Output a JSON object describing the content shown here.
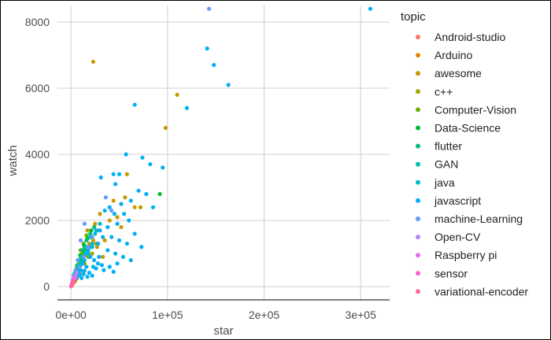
{
  "chart_data": {
    "type": "scatter",
    "xlabel": "star",
    "ylabel": "watch",
    "xlim": [
      -14000,
      330000
    ],
    "ylim": [
      -400,
      8500
    ],
    "x_ticks": [
      {
        "value": 0,
        "label": "0e+00"
      },
      {
        "value": 100000,
        "label": "1e+05"
      },
      {
        "value": 200000,
        "label": "2e+05"
      },
      {
        "value": 300000,
        "label": "3e+05"
      }
    ],
    "y_ticks": [
      {
        "value": 0,
        "label": "0"
      },
      {
        "value": 2000,
        "label": "2000"
      },
      {
        "value": 4000,
        "label": "4000"
      },
      {
        "value": 6000,
        "label": "6000"
      },
      {
        "value": 8000,
        "label": "8000"
      }
    ],
    "grid": true,
    "legend": {
      "title": "topic",
      "position": "right"
    },
    "series": [
      {
        "name": "Android-studio",
        "color": "#F8766D",
        "points": [
          [
            1200,
            60
          ],
          [
            2500,
            120
          ],
          [
            900,
            40
          ],
          [
            3500,
            150
          ],
          [
            1800,
            90
          ],
          [
            4200,
            200
          ],
          [
            600,
            30
          ],
          [
            5200,
            260
          ]
        ]
      },
      {
        "name": "Arduino",
        "color": "#E58700",
        "points": [
          [
            2000,
            100
          ],
          [
            4500,
            180
          ],
          [
            7000,
            320
          ],
          [
            10500,
            480
          ],
          [
            3200,
            140
          ],
          [
            1500,
            70
          ],
          [
            8500,
            390
          ],
          [
            6000,
            250
          ]
        ]
      },
      {
        "name": "awesome",
        "color": "#C99800",
        "points": [
          [
            23000,
            6800
          ],
          [
            110000,
            5800
          ],
          [
            98000,
            4800
          ],
          [
            58000,
            3400
          ],
          [
            72000,
            2400
          ],
          [
            66000,
            2400
          ],
          [
            56000,
            2700
          ],
          [
            48000,
            2100
          ],
          [
            40000,
            2000
          ],
          [
            30000,
            2200
          ],
          [
            28000,
            1700
          ],
          [
            25000,
            1900
          ],
          [
            35000,
            1400
          ],
          [
            20000,
            1500
          ],
          [
            15000,
            1100
          ],
          [
            44000,
            2600
          ],
          [
            52000,
            1800
          ],
          [
            19000,
            1300
          ],
          [
            12000,
            800
          ],
          [
            33000,
            900
          ],
          [
            27000,
            1200
          ],
          [
            17000,
            1700
          ],
          [
            23000,
            1400
          ],
          [
            9000,
            600
          ]
        ]
      },
      {
        "name": "c++",
        "color": "#A3A500",
        "points": [
          [
            8000,
            500
          ],
          [
            12000,
            900
          ],
          [
            18000,
            1200
          ],
          [
            22000,
            1000
          ],
          [
            14000,
            700
          ],
          [
            6000,
            400
          ],
          [
            26000,
            1300
          ],
          [
            16000,
            950
          ],
          [
            10000,
            650
          ]
        ]
      },
      {
        "name": "Computer-Vision",
        "color": "#6BB100",
        "points": [
          [
            3000,
            300
          ],
          [
            5000,
            500
          ],
          [
            7500,
            800
          ],
          [
            10000,
            1100
          ],
          [
            13000,
            1300
          ],
          [
            16000,
            1550
          ],
          [
            4000,
            420
          ],
          [
            9000,
            700
          ],
          [
            12000,
            1000
          ],
          [
            18000,
            900
          ],
          [
            6000,
            600
          ],
          [
            20000,
            1200
          ]
        ]
      },
      {
        "name": "Data-Science",
        "color": "#00BA38",
        "points": [
          [
            4000,
            350
          ],
          [
            6500,
            650
          ],
          [
            9500,
            950
          ],
          [
            13500,
            1250
          ],
          [
            17000,
            1450
          ],
          [
            21000,
            1700
          ],
          [
            8000,
            550
          ],
          [
            11000,
            800
          ],
          [
            15000,
            1050
          ],
          [
            92000,
            2800
          ]
        ]
      },
      {
        "name": "flutter",
        "color": "#00BF7D",
        "points": [
          [
            5000,
            500
          ],
          [
            8000,
            780
          ],
          [
            12000,
            1100
          ],
          [
            16000,
            1400
          ],
          [
            20000,
            1600
          ],
          [
            24000,
            1800
          ],
          [
            10000,
            900
          ],
          [
            14000,
            1150
          ]
        ]
      },
      {
        "name": "GAN",
        "color": "#00C0AF",
        "points": [
          [
            1500,
            150
          ],
          [
            3000,
            350
          ],
          [
            5000,
            480
          ],
          [
            7000,
            620
          ],
          [
            2200,
            220
          ],
          [
            4000,
            400
          ],
          [
            9000,
            780
          ]
        ]
      },
      {
        "name": "java",
        "color": "#00BCD8",
        "points": [
          [
            4000,
            300
          ],
          [
            8000,
            600
          ],
          [
            12000,
            900
          ],
          [
            16000,
            1200
          ],
          [
            20000,
            1500
          ],
          [
            26000,
            1700
          ],
          [
            30000,
            1900
          ],
          [
            22000,
            1300
          ],
          [
            18000,
            1000
          ],
          [
            14000,
            800
          ],
          [
            10000,
            650
          ],
          [
            6000,
            450
          ]
        ]
      },
      {
        "name": "javascript",
        "color": "#00B0F6",
        "points": [
          [
            141000,
            7200
          ],
          [
            148000,
            6700
          ],
          [
            163000,
            6100
          ],
          [
            120000,
            5400
          ],
          [
            66000,
            5500
          ],
          [
            57000,
            4000
          ],
          [
            74000,
            3900
          ],
          [
            82000,
            3700
          ],
          [
            95000,
            3600
          ],
          [
            31000,
            3300
          ],
          [
            44000,
            3400
          ],
          [
            50000,
            3400
          ],
          [
            46000,
            3100
          ],
          [
            70000,
            2900
          ],
          [
            62000,
            2600
          ],
          [
            78000,
            2800
          ],
          [
            85000,
            2400
          ],
          [
            52000,
            2500
          ],
          [
            40000,
            2400
          ],
          [
            35000,
            2300
          ],
          [
            45000,
            2200
          ],
          [
            55000,
            2200
          ],
          [
            60000,
            2000
          ],
          [
            48000,
            1900
          ],
          [
            38000,
            1800
          ],
          [
            30000,
            1700
          ],
          [
            25000,
            1600
          ],
          [
            33000,
            1500
          ],
          [
            42000,
            1500
          ],
          [
            50000,
            1400
          ],
          [
            58000,
            1300
          ],
          [
            66000,
            1600
          ],
          [
            73000,
            1200
          ],
          [
            28000,
            1300
          ],
          [
            22000,
            1200
          ],
          [
            18000,
            1100
          ],
          [
            15000,
            1000
          ],
          [
            38000,
            1100
          ],
          [
            46000,
            1000
          ],
          [
            54000,
            900
          ],
          [
            62000,
            800
          ],
          [
            20000,
            900
          ],
          [
            24000,
            800
          ],
          [
            12000,
            700
          ],
          [
            28000,
            700
          ],
          [
            32000,
            650
          ],
          [
            40000,
            600
          ],
          [
            48000,
            700
          ],
          [
            16000,
            600
          ],
          [
            10000,
            500
          ],
          [
            8000,
            420
          ],
          [
            14000,
            480
          ],
          [
            26000,
            550
          ],
          [
            34000,
            500
          ],
          [
            6000,
            300
          ],
          [
            5000,
            250
          ],
          [
            9000,
            350
          ],
          [
            19000,
            420
          ],
          [
            22000,
            330
          ],
          [
            44000,
            450
          ],
          [
            11000,
            260
          ],
          [
            13000,
            380
          ],
          [
            17000,
            300
          ],
          [
            23000,
            600
          ],
          [
            29000,
            900
          ]
        ]
      },
      {
        "name": "machine-Learning",
        "color": "#619CFF",
        "points": [
          [
            143000,
            8400
          ],
          [
            36000,
            2700
          ],
          [
            42000,
            2300
          ],
          [
            14000,
            1900
          ],
          [
            10000,
            1400
          ],
          [
            18000,
            1200
          ],
          [
            7000,
            800
          ],
          [
            22000,
            1500
          ],
          [
            5000,
            500
          ],
          [
            13000,
            900
          ],
          [
            9000,
            600
          ]
        ]
      },
      {
        "name": "Open-CV",
        "color": "#B983FF",
        "points": [
          [
            1000,
            80
          ],
          [
            2000,
            180
          ],
          [
            3000,
            260
          ],
          [
            4500,
            340
          ],
          [
            6000,
            420
          ],
          [
            1500,
            120
          ],
          [
            2500,
            220
          ]
        ]
      },
      {
        "name": "Raspberry pi",
        "color": "#E76BF3",
        "points": [
          [
            800,
            60
          ],
          [
            1500,
            140
          ],
          [
            2500,
            220
          ],
          [
            3500,
            300
          ],
          [
            500,
            40
          ],
          [
            2000,
            180
          ],
          [
            4200,
            260
          ],
          [
            1200,
            100
          ]
        ]
      },
      {
        "name": "sensor",
        "color": "#FD61D1",
        "points": [
          [
            300,
            20
          ],
          [
            600,
            50
          ],
          [
            1000,
            80
          ],
          [
            1500,
            120
          ],
          [
            2200,
            170
          ],
          [
            400,
            30
          ],
          [
            800,
            70
          ],
          [
            1800,
            140
          ],
          [
            2800,
            210
          ]
        ]
      },
      {
        "name": "variational-encoder",
        "color": "#FF67A4",
        "points": [
          [
            200,
            10
          ],
          [
            500,
            40
          ],
          [
            900,
            70
          ],
          [
            1400,
            100
          ],
          [
            700,
            50
          ],
          [
            1100,
            90
          ],
          [
            300,
            25
          ],
          [
            1700,
            130
          ]
        ]
      },
      {
        "name": "javascript",
        "color": "#00B0F6",
        "hidden_in_legend": true,
        "points": [
          [
            310000,
            8400
          ]
        ]
      }
    ]
  }
}
